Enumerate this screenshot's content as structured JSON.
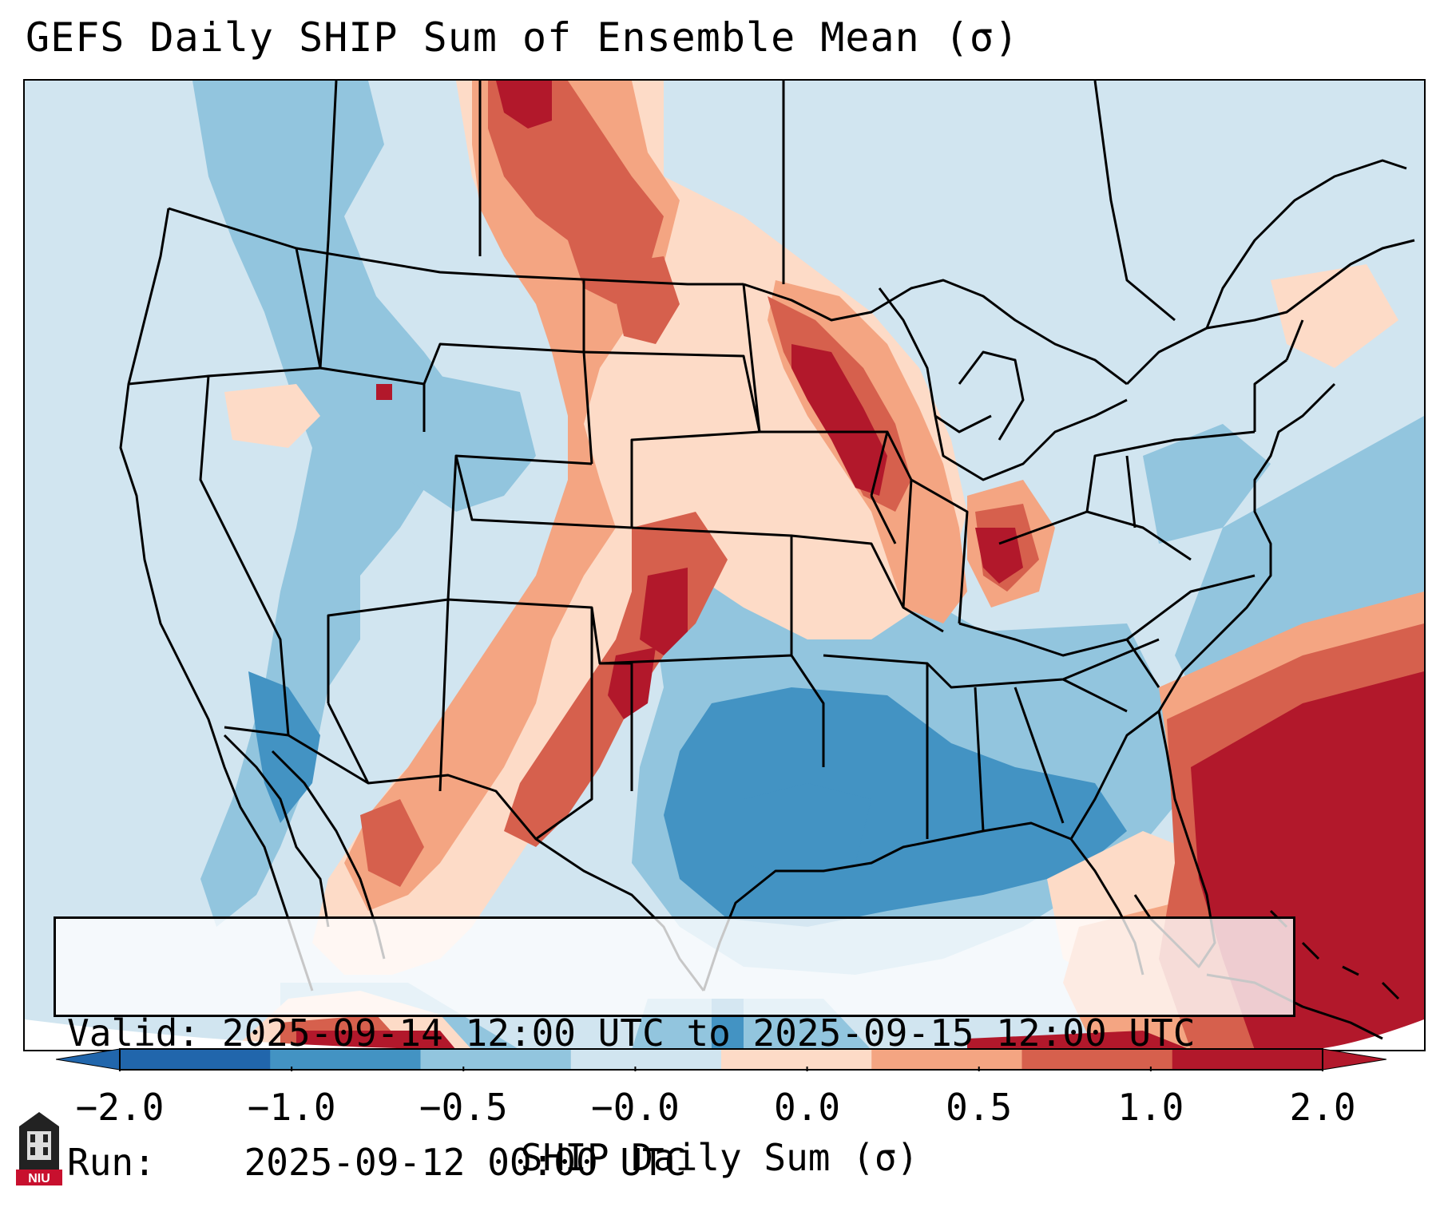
{
  "title": "GEFS Daily SHIP Sum of Ensemble Mean (σ)",
  "info": {
    "valid_label": "Valid:",
    "valid_value": "2025-09-14 12:00 UTC to 2025-09-15 12:00 UTC",
    "run_label": "Run:",
    "run_value": "2025-09-12 00:00 UTC"
  },
  "colorbar": {
    "label": "SHIP Daily Sum (σ)",
    "ticks": [
      "−2.0",
      "−1.0",
      "−0.5",
      "−0.0",
      "0.0",
      "0.5",
      "1.0",
      "2.0"
    ],
    "colors": [
      "#2166ac",
      "#4393c3",
      "#92c5de",
      "#d1e5f0",
      "#fddbc7",
      "#f4a582",
      "#d6604d",
      "#b2182b"
    ]
  },
  "logo": {
    "text": "NIU",
    "color": "#c8102e"
  }
}
